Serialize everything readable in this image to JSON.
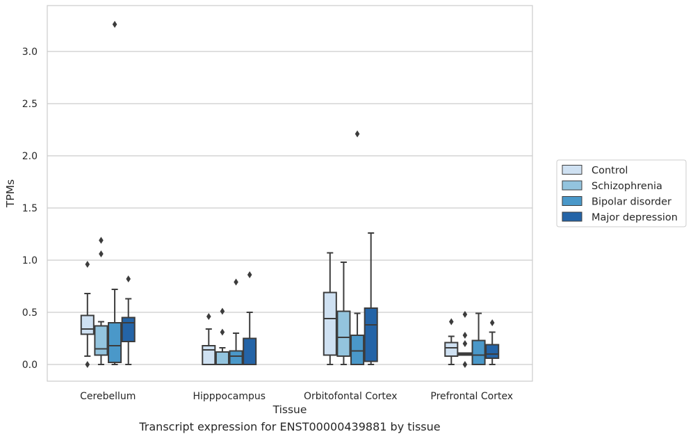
{
  "caption": "Transcript expression for ENST00000439881 by tissue",
  "chart_data": {
    "type": "box",
    "xlabel": "Tissue",
    "ylabel": "TPMs",
    "ylim": [
      -0.16,
      3.44
    ],
    "yticks": [
      0.0,
      0.5,
      1.0,
      1.5,
      2.0,
      2.5,
      3.0
    ],
    "ytick_labels": [
      "0.0",
      "0.5",
      "1.0",
      "1.5",
      "2.0",
      "2.5",
      "3.0"
    ],
    "grid": "horizontal",
    "legend_position": "right",
    "categories": [
      "Cerebellum",
      "Hipppocampus",
      "Orbitofontal Cortex",
      "Prefrontal Cortex"
    ],
    "series": [
      {
        "name": "Control",
        "color": "#cfe1f2",
        "boxes": [
          {
            "whislo": 0.08,
            "q1": 0.29,
            "med": 0.34,
            "q3": 0.47,
            "whishi": 0.68,
            "fliers": [
              0.96,
              0.0
            ]
          },
          {
            "whislo": 0.0,
            "q1": 0.0,
            "med": 0.14,
            "q3": 0.18,
            "whishi": 0.34,
            "fliers": [
              0.46
            ]
          },
          {
            "whislo": 0.0,
            "q1": 0.09,
            "med": 0.44,
            "q3": 0.69,
            "whishi": 1.07,
            "fliers": []
          },
          {
            "whislo": 0.0,
            "q1": 0.08,
            "med": 0.16,
            "q3": 0.21,
            "whishi": 0.27,
            "fliers": [
              0.41
            ]
          }
        ]
      },
      {
        "name": "Schizophrenia",
        "color": "#93c4de",
        "boxes": [
          {
            "whislo": 0.0,
            "q1": 0.09,
            "med": 0.15,
            "q3": 0.37,
            "whishi": 0.41,
            "fliers": [
              1.19,
              1.06
            ]
          },
          {
            "whislo": 0.0,
            "q1": 0.0,
            "med": 0.0,
            "q3": 0.12,
            "whishi": 0.16,
            "fliers": [
              0.51,
              0.31
            ]
          },
          {
            "whislo": 0.0,
            "q1": 0.08,
            "med": 0.26,
            "q3": 0.51,
            "whishi": 0.98,
            "fliers": []
          },
          {
            "whislo": 0.09,
            "q1": 0.09,
            "med": 0.1,
            "q3": 0.11,
            "whishi": 0.11,
            "fliers": [
              0.48,
              0.28,
              0.2,
              0.0
            ]
          }
        ]
      },
      {
        "name": "Bipolar disorder",
        "color": "#4a98c9",
        "boxes": [
          {
            "whislo": 0.0,
            "q1": 0.02,
            "med": 0.18,
            "q3": 0.4,
            "whishi": 0.72,
            "fliers": [
              3.26
            ]
          },
          {
            "whislo": 0.0,
            "q1": 0.0,
            "med": 0.08,
            "q3": 0.13,
            "whishi": 0.3,
            "fliers": [
              0.79
            ]
          },
          {
            "whislo": 0.0,
            "q1": 0.0,
            "med": 0.13,
            "q3": 0.28,
            "whishi": 0.49,
            "fliers": [
              2.21
            ]
          },
          {
            "whislo": 0.0,
            "q1": 0.0,
            "med": 0.09,
            "q3": 0.23,
            "whishi": 0.49,
            "fliers": []
          }
        ]
      },
      {
        "name": "Major depression",
        "color": "#2464a7",
        "boxes": [
          {
            "whislo": 0.0,
            "q1": 0.22,
            "med": 0.4,
            "q3": 0.45,
            "whishi": 0.63,
            "fliers": [
              0.82
            ]
          },
          {
            "whislo": 0.0,
            "q1": 0.0,
            "med": 0.0,
            "q3": 0.25,
            "whishi": 0.5,
            "fliers": [
              0.86
            ]
          },
          {
            "whislo": 0.0,
            "q1": 0.03,
            "med": 0.38,
            "q3": 0.54,
            "whishi": 1.26,
            "fliers": []
          },
          {
            "whislo": 0.0,
            "q1": 0.06,
            "med": 0.1,
            "q3": 0.19,
            "whishi": 0.31,
            "fliers": [
              0.4
            ]
          }
        ]
      }
    ]
  }
}
